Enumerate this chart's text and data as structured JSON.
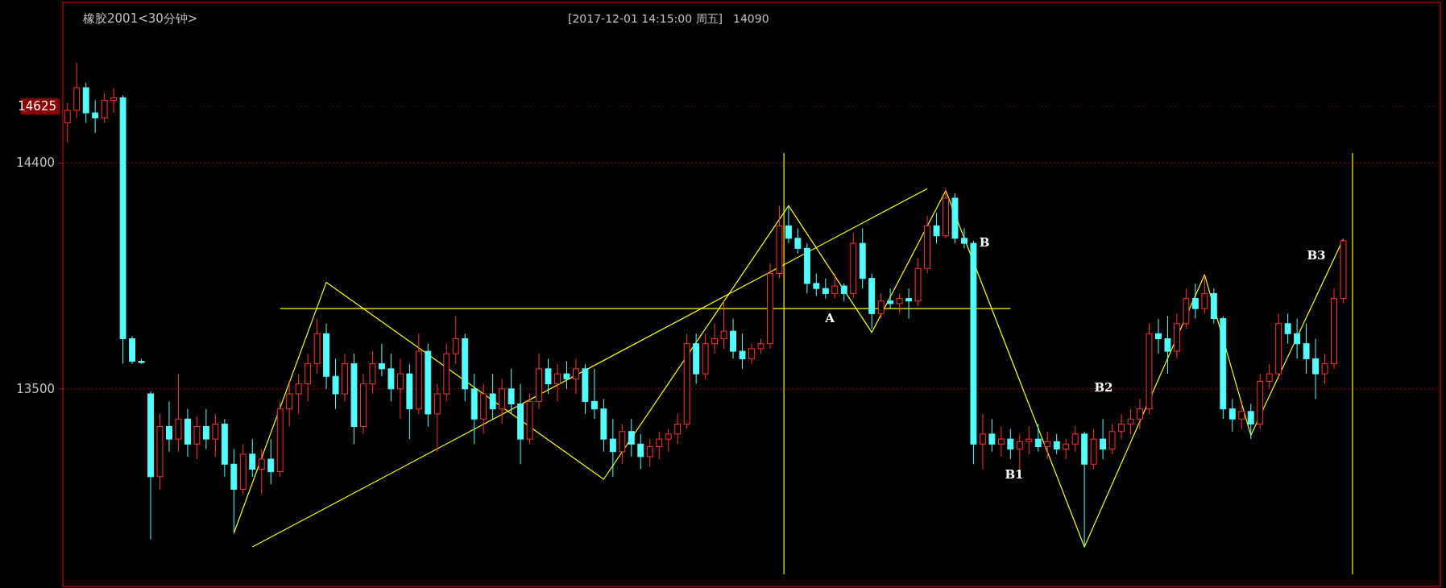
{
  "chart_data": {
    "type": "candlestick",
    "title": "橡胶2001<30分钟>",
    "annotations": [
      "[2017-12-01  14:15:00 周五]",
      "14090",
      "A",
      "B",
      "B1",
      "B2",
      "B3"
    ],
    "categories": [
      null,
      null,
      null,
      null,
      null,
      null,
      null,
      null,
      null,
      null,
      null,
      null,
      null,
      null,
      null,
      null,
      null,
      null,
      null,
      null,
      null,
      null,
      null,
      null,
      null,
      null,
      null,
      null,
      null,
      null,
      null,
      null,
      null,
      null,
      null,
      null,
      null,
      null,
      null,
      null,
      null,
      null,
      null,
      null,
      null,
      null,
      null,
      null,
      null,
      null,
      null,
      null,
      null,
      null,
      null,
      null,
      null,
      null,
      null,
      null,
      null,
      null,
      null,
      null,
      null,
      null,
      null,
      null,
      null,
      null,
      null,
      null,
      null,
      null,
      null,
      null,
      null,
      null,
      null,
      null,
      null,
      null,
      null,
      null,
      null,
      null,
      null,
      null,
      null,
      null,
      null,
      null,
      null,
      null,
      null,
      null,
      null,
      null,
      null,
      null,
      null,
      null,
      null,
      null,
      null,
      null,
      null,
      null,
      null,
      null,
      null,
      null,
      null,
      null,
      null,
      null,
      null,
      null,
      null,
      null,
      null,
      null,
      null,
      null,
      null,
      null,
      null,
      null,
      null,
      null,
      null,
      null,
      null,
      null,
      null,
      null,
      null,
      null,
      null,
      null,
      null,
      null,
      null,
      null,
      null,
      null,
      null,
      null,
      null
    ],
    "ohlc": [
      [
        14560,
        14640,
        14480,
        14610
      ],
      [
        14610,
        14800,
        14580,
        14700
      ],
      [
        14700,
        14720,
        14560,
        14600
      ],
      [
        14600,
        14650,
        14520,
        14580
      ],
      [
        14580,
        14680,
        14560,
        14650
      ],
      [
        14650,
        14700,
        14600,
        14660
      ],
      [
        14660,
        14670,
        13600,
        13700
      ],
      [
        13700,
        13710,
        13600,
        13610
      ],
      [
        13610,
        13620,
        13600,
        13605
      ],
      [
        13480,
        13490,
        12900,
        13150
      ],
      [
        13150,
        13400,
        13100,
        13350
      ],
      [
        13350,
        13450,
        13250,
        13300
      ],
      [
        13300,
        13560,
        13250,
        13380
      ],
      [
        13380,
        13420,
        13230,
        13280
      ],
      [
        13280,
        13390,
        13220,
        13350
      ],
      [
        13350,
        13420,
        13260,
        13300
      ],
      [
        13300,
        13400,
        13230,
        13360
      ],
      [
        13360,
        13380,
        13150,
        13200
      ],
      [
        13200,
        13260,
        12930,
        13100
      ],
      [
        13100,
        13280,
        13080,
        13240
      ],
      [
        13240,
        13300,
        13150,
        13180
      ],
      [
        13180,
        13260,
        13080,
        13220
      ],
      [
        13220,
        13300,
        13120,
        13170
      ],
      [
        13170,
        13450,
        13150,
        13420
      ],
      [
        13420,
        13530,
        13350,
        13480
      ],
      [
        13480,
        13560,
        13400,
        13520
      ],
      [
        13520,
        13640,
        13450,
        13600
      ],
      [
        13600,
        13780,
        13560,
        13720
      ],
      [
        13720,
        13760,
        13500,
        13550
      ],
      [
        13550,
        13620,
        13420,
        13480
      ],
      [
        13480,
        13640,
        13450,
        13600
      ],
      [
        13600,
        13640,
        13280,
        13350
      ],
      [
        13350,
        13560,
        13320,
        13520
      ],
      [
        13520,
        13650,
        13480,
        13600
      ],
      [
        13600,
        13680,
        13550,
        13580
      ],
      [
        13580,
        13640,
        13450,
        13500
      ],
      [
        13500,
        13620,
        13380,
        13560
      ],
      [
        13560,
        13600,
        13300,
        13420
      ],
      [
        13420,
        13720,
        13400,
        13650
      ],
      [
        13650,
        13680,
        13350,
        13400
      ],
      [
        13400,
        13520,
        13250,
        13480
      ],
      [
        13480,
        13680,
        13450,
        13640
      ],
      [
        13640,
        13790,
        13600,
        13700
      ],
      [
        13700,
        13720,
        13450,
        13500
      ],
      [
        13500,
        13560,
        13280,
        13380
      ],
      [
        13380,
        13520,
        13320,
        13480
      ],
      [
        13480,
        13560,
        13380,
        13420
      ],
      [
        13420,
        13540,
        13360,
        13500
      ],
      [
        13500,
        13580,
        13400,
        13440
      ],
      [
        13440,
        13520,
        13200,
        13300
      ],
      [
        13300,
        13480,
        13280,
        13450
      ],
      [
        13450,
        13640,
        13420,
        13580
      ],
      [
        13580,
        13620,
        13480,
        13520
      ],
      [
        13520,
        13600,
        13450,
        13560
      ],
      [
        13560,
        13610,
        13500,
        13540
      ],
      [
        13540,
        13620,
        13480,
        13580
      ],
      [
        13580,
        13600,
        13400,
        13450
      ],
      [
        13450,
        13580,
        13380,
        13420
      ],
      [
        13420,
        13460,
        13250,
        13300
      ],
      [
        13300,
        13380,
        13150,
        13250
      ],
      [
        13250,
        13360,
        13200,
        13330
      ],
      [
        13330,
        13380,
        13230,
        13280
      ],
      [
        13280,
        13320,
        13180,
        13230
      ],
      [
        13230,
        13300,
        13190,
        13270
      ],
      [
        13270,
        13330,
        13220,
        13300
      ],
      [
        13300,
        13340,
        13250,
        13320
      ],
      [
        13320,
        13400,
        13280,
        13360
      ],
      [
        13360,
        13720,
        13340,
        13680
      ],
      [
        13680,
        13720,
        13520,
        13560
      ],
      [
        13560,
        13720,
        13540,
        13680
      ],
      [
        13680,
        13760,
        13640,
        13700
      ],
      [
        13700,
        13850,
        13660,
        13730
      ],
      [
        13730,
        13780,
        13620,
        13650
      ],
      [
        13650,
        13720,
        13580,
        13620
      ],
      [
        13620,
        13680,
        13600,
        13660
      ],
      [
        13660,
        13700,
        13640,
        13680
      ],
      [
        13680,
        14000,
        13660,
        13960
      ],
      [
        13960,
        14230,
        13940,
        14150
      ],
      [
        14150,
        14230,
        14080,
        14100
      ],
      [
        14100,
        14140,
        14040,
        14060
      ],
      [
        14060,
        14080,
        13880,
        13920
      ],
      [
        13920,
        13960,
        13870,
        13900
      ],
      [
        13900,
        13940,
        13860,
        13880
      ],
      [
        13880,
        13960,
        13860,
        13910
      ],
      [
        13910,
        13920,
        13850,
        13880
      ],
      [
        13880,
        14120,
        13860,
        14080
      ],
      [
        14080,
        14140,
        13900,
        13940
      ],
      [
        13940,
        13960,
        13740,
        13800
      ],
      [
        13800,
        13880,
        13780,
        13850
      ],
      [
        13850,
        13900,
        13820,
        13840
      ],
      [
        13840,
        13880,
        13800,
        13860
      ],
      [
        13860,
        13900,
        13780,
        13850
      ],
      [
        13850,
        14020,
        13830,
        13980
      ],
      [
        13980,
        14190,
        13960,
        14150
      ],
      [
        14150,
        14200,
        14080,
        14110
      ],
      [
        14110,
        14300,
        14100,
        14260
      ],
      [
        14260,
        14280,
        14080,
        14100
      ],
      [
        14100,
        14140,
        14060,
        14080
      ],
      [
        14080,
        14090,
        13200,
        13280
      ],
      [
        13280,
        13400,
        13180,
        13320
      ],
      [
        13320,
        13380,
        13250,
        13280
      ],
      [
        13280,
        13350,
        13230,
        13300
      ],
      [
        13300,
        13340,
        13220,
        13260
      ],
      [
        13260,
        13320,
        13180,
        13290
      ],
      [
        13290,
        13350,
        13240,
        13300
      ],
      [
        13300,
        13360,
        13250,
        13270
      ],
      [
        13270,
        13330,
        13220,
        13290
      ],
      [
        13290,
        13320,
        13240,
        13260
      ],
      [
        13260,
        13300,
        13220,
        13280
      ],
      [
        13280,
        13350,
        13250,
        13320
      ],
      [
        13320,
        13330,
        12870,
        13200
      ],
      [
        13200,
        13340,
        13180,
        13300
      ],
      [
        13300,
        13380,
        13220,
        13260
      ],
      [
        13260,
        13360,
        13240,
        13330
      ],
      [
        13330,
        13400,
        13300,
        13360
      ],
      [
        13360,
        13420,
        13320,
        13380
      ],
      [
        13380,
        13460,
        13340,
        13420
      ],
      [
        13420,
        13760,
        13400,
        13720
      ],
      [
        13720,
        13780,
        13640,
        13700
      ],
      [
        13700,
        13790,
        13560,
        13650
      ],
      [
        13650,
        13800,
        13620,
        13760
      ],
      [
        13760,
        13900,
        13740,
        13860
      ],
      [
        13860,
        13920,
        13780,
        13820
      ],
      [
        13820,
        13950,
        13800,
        13880
      ],
      [
        13880,
        13900,
        13760,
        13780
      ],
      [
        13780,
        13790,
        13380,
        13420
      ],
      [
        13420,
        13460,
        13330,
        13380
      ],
      [
        13380,
        13440,
        13340,
        13410
      ],
      [
        13410,
        13440,
        13300,
        13360
      ],
      [
        13360,
        13560,
        13340,
        13530
      ],
      [
        13530,
        13600,
        13500,
        13560
      ],
      [
        13560,
        13800,
        13540,
        13760
      ],
      [
        13760,
        13800,
        13680,
        13720
      ],
      [
        13720,
        13780,
        13620,
        13680
      ],
      [
        13680,
        13760,
        13560,
        13620
      ],
      [
        13620,
        13700,
        13460,
        13560
      ],
      [
        13560,
        13640,
        13520,
        13600
      ],
      [
        13600,
        13900,
        13580,
        13860
      ],
      [
        13860,
        14100,
        13840,
        14090
      ],
      null,
      null,
      null,
      null,
      null,
      null,
      null,
      null,
      null,
      null
    ],
    "series": [
      {
        "type": "line",
        "color": "#ffff00",
        "values": [
          null,
          null,
          null,
          null,
          null,
          null,
          null,
          null,
          null,
          null,
          null,
          null,
          null,
          null,
          null,
          null,
          null,
          null,
          12925,
          null,
          null,
          null,
          null,
          null,
          null,
          null,
          null,
          null,
          13925,
          null,
          null,
          null,
          null,
          null,
          null,
          null,
          null,
          null,
          null,
          null,
          null,
          null,
          null,
          null,
          null,
          null,
          null,
          null,
          null,
          null,
          null,
          null,
          null,
          null,
          null,
          null,
          null,
          null,
          13140,
          null,
          null,
          null,
          null,
          null,
          null,
          null,
          null,
          null,
          null,
          null,
          null,
          null,
          null,
          null,
          null,
          null,
          null,
          null,
          14230,
          null,
          null,
          null,
          null,
          null,
          null,
          null,
          null,
          13725,
          null,
          null,
          null,
          null,
          null,
          null,
          null,
          14290,
          null,
          null,
          null,
          null,
          null,
          null,
          null,
          null,
          null,
          null,
          null,
          null,
          null,
          null,
          12870,
          null,
          null,
          null,
          null,
          null,
          null,
          null,
          null,
          null,
          null,
          null,
          null,
          13955,
          null,
          null,
          null,
          null,
          13315,
          null,
          null,
          null,
          null,
          null,
          null,
          null,
          null,
          null,
          14097,
          null,
          null,
          null,
          null,
          null,
          null,
          null,
          null,
          null,
          null
        ]
      },
      {
        "type": "line",
        "color": "#ffff00",
        "values": [
          null,
          null,
          null,
          null,
          null,
          null,
          null,
          null,
          null,
          null,
          null,
          null,
          null,
          null,
          null,
          null,
          null,
          null,
          null,
          null,
          12870,
          null,
          null,
          null,
          null,
          null,
          null,
          null,
          null,
          null,
          null,
          null,
          null,
          null,
          null,
          null,
          null,
          null,
          null,
          null,
          null,
          null,
          null,
          null,
          null,
          null,
          null,
          null,
          null,
          null,
          null,
          null,
          null,
          null,
          null,
          null,
          null,
          null,
          null,
          null,
          null,
          null,
          null,
          null,
          null,
          null,
          null,
          null,
          null,
          null,
          null,
          null,
          null,
          null,
          null,
          null,
          null,
          null,
          null,
          null,
          null,
          null,
          null,
          null,
          null,
          null,
          null,
          null,
          null,
          null,
          null,
          null,
          null,
          14298,
          null,
          null,
          null,
          null,
          null,
          null,
          null,
          null,
          null,
          null,
          null,
          null,
          null,
          null,
          null,
          null,
          null,
          null,
          null,
          null,
          null,
          null,
          null,
          null,
          null,
          null,
          null,
          null,
          null,
          null,
          null,
          null,
          null,
          null,
          null,
          null,
          null,
          null,
          null,
          null,
          null,
          null,
          null,
          null,
          null,
          null,
          null,
          null,
          null,
          null,
          null,
          null,
          null,
          null,
          null
        ]
      },
      {
        "type": "line",
        "color": "#ffff00",
        "values": [
          null,
          null,
          null,
          null,
          null,
          null,
          null,
          null,
          null,
          null,
          null,
          null,
          null,
          null,
          null,
          null,
          null,
          null,
          null,
          null,
          null,
          null,
          null,
          13820,
          null,
          null,
          null,
          null,
          null,
          null,
          null,
          null,
          null,
          null,
          null,
          null,
          null,
          null,
          null,
          null,
          null,
          null,
          null,
          null,
          null,
          null,
          null,
          null,
          null,
          null,
          null,
          null,
          null,
          null,
          null,
          null,
          null,
          null,
          null,
          null,
          null,
          null,
          null,
          null,
          null,
          null,
          null,
          null,
          null,
          null,
          null,
          null,
          null,
          null,
          null,
          null,
          null,
          null,
          null,
          null,
          null,
          null,
          null,
          null,
          null,
          null,
          null,
          null,
          null,
          null,
          null,
          null,
          null,
          null,
          null,
          null,
          null,
          null,
          null,
          null,
          null,
          null,
          13820,
          null,
          null,
          null,
          null,
          null,
          null,
          null,
          null,
          null,
          null,
          null,
          null,
          null,
          null,
          null,
          null,
          null,
          null,
          null,
          null,
          null,
          null,
          null,
          null,
          null,
          null,
          null,
          null,
          null,
          null,
          null,
          null,
          null,
          null,
          null,
          null,
          null,
          null,
          null,
          null,
          null,
          null,
          null,
          null,
          null,
          null
        ]
      }
    ],
    "ylim": [
      12713,
      15040
    ],
    "yticks": [
      13500,
      14400
    ],
    "grid": "y",
    "ref_lines": [
      {
        "axis": "y",
        "value": 14625,
        "label": "14625",
        "color": "#8b0000"
      }
    ]
  }
}
